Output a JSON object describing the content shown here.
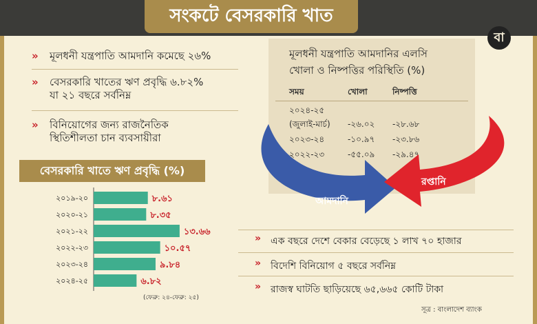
{
  "header": {
    "title": "সংকটে বেসরকারি খাত",
    "logo_text": "বা"
  },
  "bullets": [
    "মূলধনী যন্ত্রপাতি আমদানি কমেছে ২৬%",
    "বেসরকারি খাতের ঋণ প্রবৃদ্ধি ৬.৮২%",
    "যা ২১ বছরে সর্বনিম্ন",
    "বিনিয়োগের জন্য রাজনৈতিক",
    "স্থিতিশীলতা চান ব্যবসায়ীরা"
  ],
  "table": {
    "title_line1": "মূলধনী যন্ত্রপাতি আমদানির এলসি",
    "title_line2": "খোলা ও নিষ্পত্তির পরিস্থিতি (%)",
    "headers": [
      "সময়",
      "খোলা",
      "নিষ্পত্তি"
    ],
    "rows": [
      {
        "period": "২০২৪-২৫",
        "period2": "(জুলাই-মার্চ)",
        "open": "-২৬.০২",
        "settle": "-২৮.৬৮"
      },
      {
        "period": "২০২৩-২৪",
        "period2": "",
        "open": "-১০.৯৭",
        "settle": "-২৩.৮৬"
      },
      {
        "period": "২০২২-২৩",
        "period2": "",
        "open": "-৫৫.০৯",
        "settle": "-২৯.৪৭"
      }
    ]
  },
  "arrows": {
    "import_label": "আমদানি",
    "export_label": "রপ্তানি",
    "blue": "#3a5ba8",
    "red": "#e0242c"
  },
  "bottom_bullets": [
    "এক বছরে দেশে বেকার বেড়েছে ১ লাখ ৭০ হাজার",
    "বিদেশি বিনিয়োগ ৫ বছরে সর্বনিম্ন",
    "রাজস্ব ঘাটতি ছাড়িয়েছে ৬৫,৬৬৫ কোটি টাকা"
  ],
  "source": "সূত্র : বাংলাদেশ ব্যাংক",
  "chart_data": {
    "type": "bar",
    "title": "বেসরকারি খাতে ঋণ প্রবৃদ্ধি (%)",
    "categories": [
      "২০১৯-২০",
      "২০২০-২১",
      "২০২১-২২",
      "২০২২-২৩",
      "২০২৩-২৪",
      "২০২৪-২৫"
    ],
    "values": [
      8.61,
      8.35,
      13.66,
      10.57,
      9.84,
      6.82
    ],
    "value_labels": [
      "৮.৬১",
      "৮.৩৫",
      "১৩.৬৬",
      "১০.৫৭",
      "৯.৮৪",
      "৬.৮২"
    ],
    "note": "(ফেব্রু: ২৪-ফেব্রু: ২৫)",
    "bar_color": "#3fae8e",
    "label_color": "#c8242c",
    "orientation": "horizontal"
  }
}
